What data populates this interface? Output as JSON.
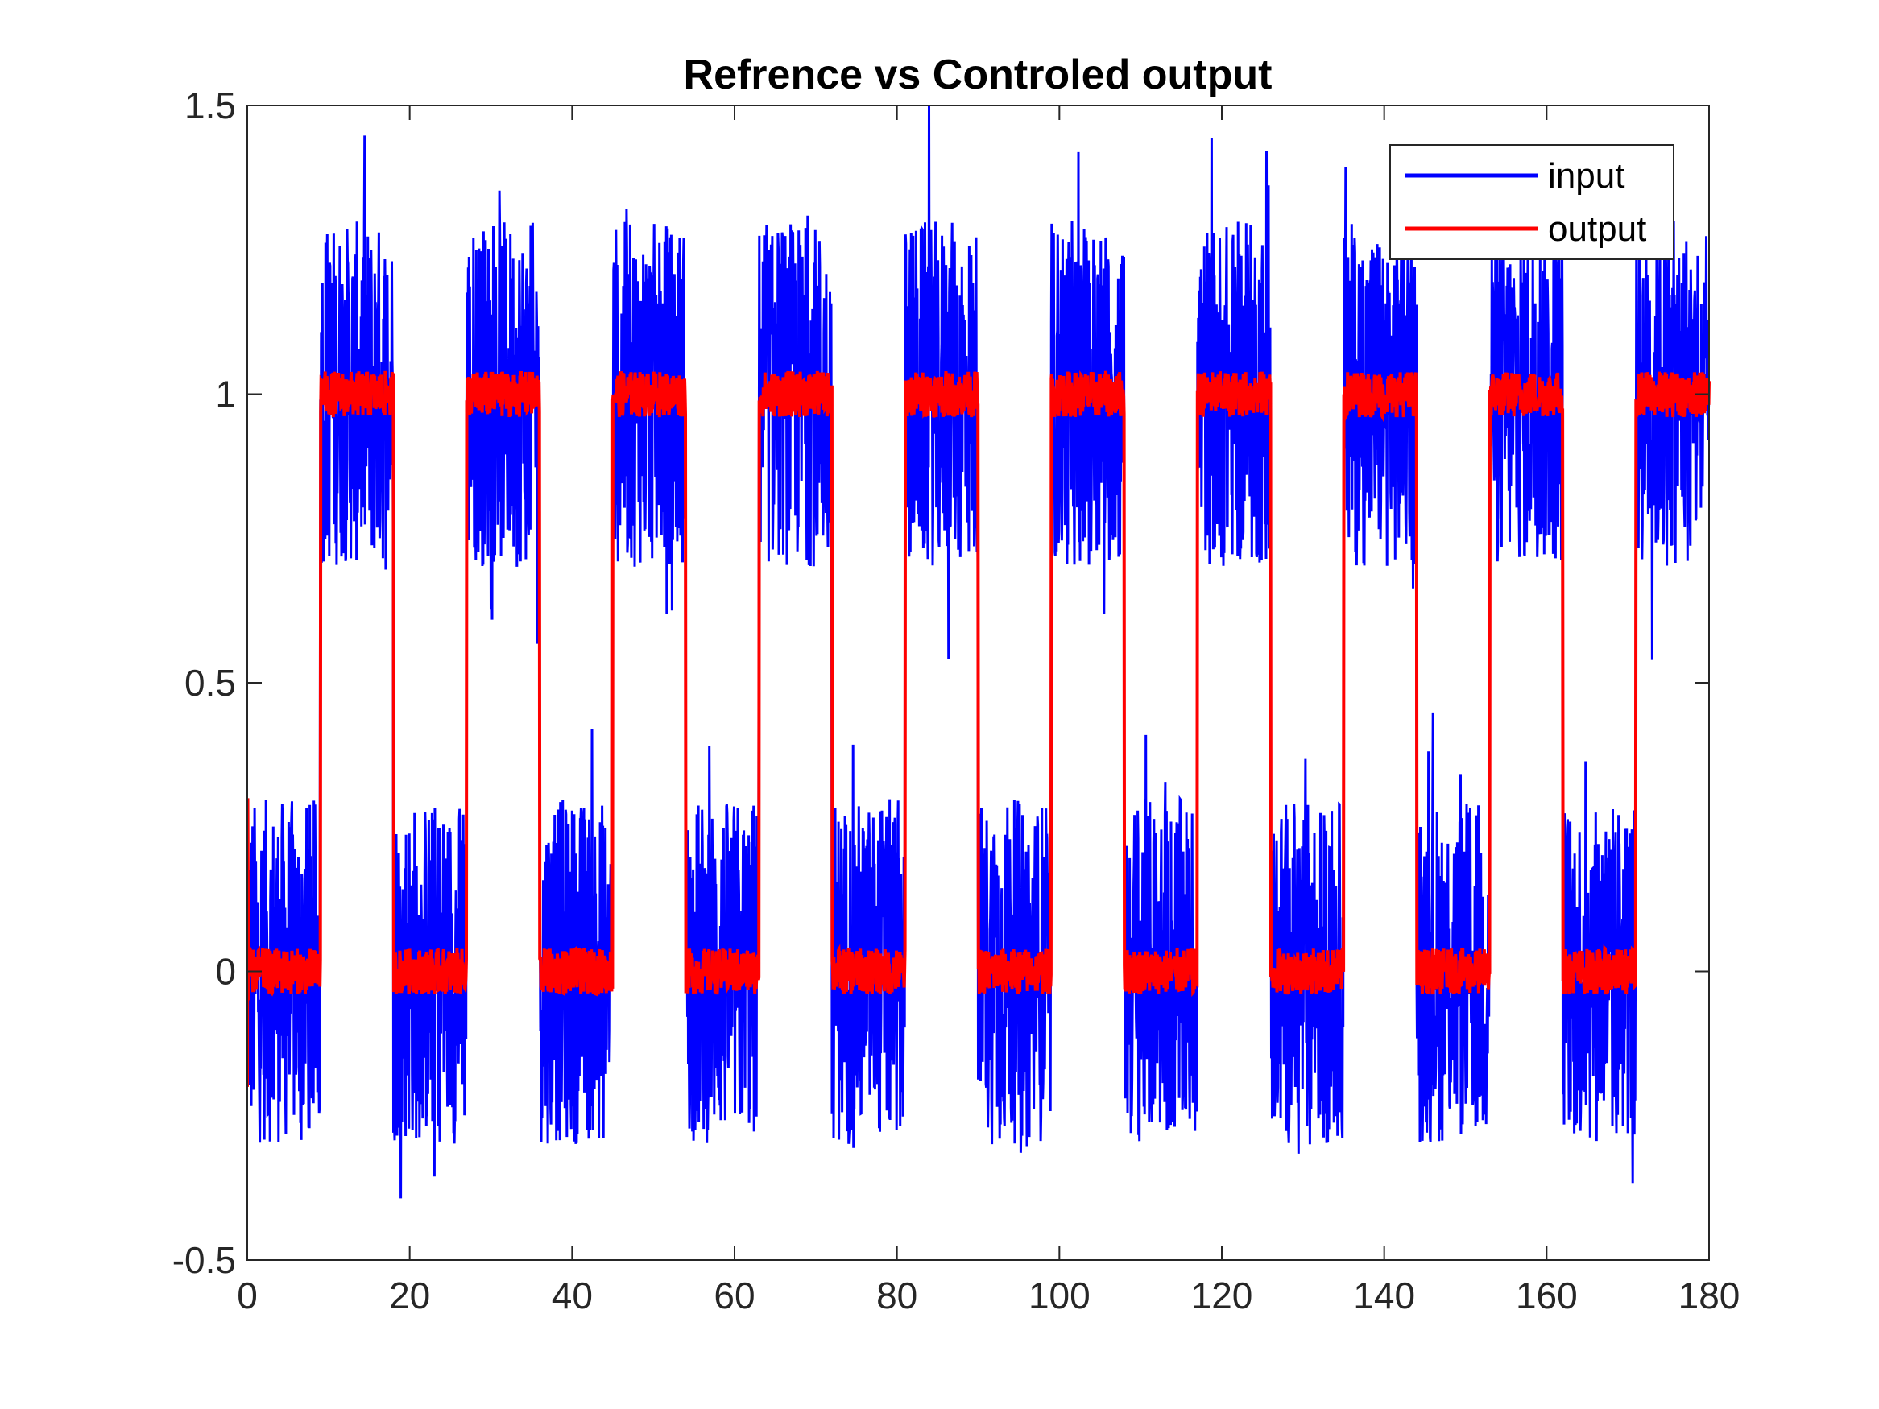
{
  "chart_data": {
    "type": "line",
    "title": "Refrence vs Controled output",
    "xlabel": "",
    "ylabel": "",
    "xlim": [
      0,
      180
    ],
    "ylim": [
      -0.5,
      1.5
    ],
    "x_ticks": [
      0,
      20,
      40,
      60,
      80,
      100,
      120,
      140,
      160,
      180
    ],
    "x_tick_labels": [
      "0",
      "20",
      "40",
      "60",
      "80",
      "100",
      "120",
      "140",
      "160",
      "180"
    ],
    "y_ticks": [
      -0.5,
      0,
      0.5,
      1,
      1.5
    ],
    "y_tick_labels": [
      "-0.5",
      "0",
      "0.5",
      "1",
      "1.5"
    ],
    "grid": false,
    "box": true,
    "legend_position": "top-right",
    "series": [
      {
        "name": "input",
        "color": "#0000FF",
        "description_shape": "square wave, low level 0 and high level 1, period 18, plus noise of amplitude about 0.3",
        "low": 0,
        "high": 1,
        "period": 18,
        "half_period": 9,
        "start_level": 0,
        "noise_amplitude": 0.3,
        "y_min": -0.5,
        "y_max": 1.5
      },
      {
        "name": "output",
        "color": "#FF0000",
        "low": 0,
        "high": 1,
        "period": 18,
        "half_period": 9,
        "start_level": 0,
        "noise_amplitude": 0.04,
        "initial_transient": [
          -0.2,
          0.3
        ]
      }
    ]
  }
}
